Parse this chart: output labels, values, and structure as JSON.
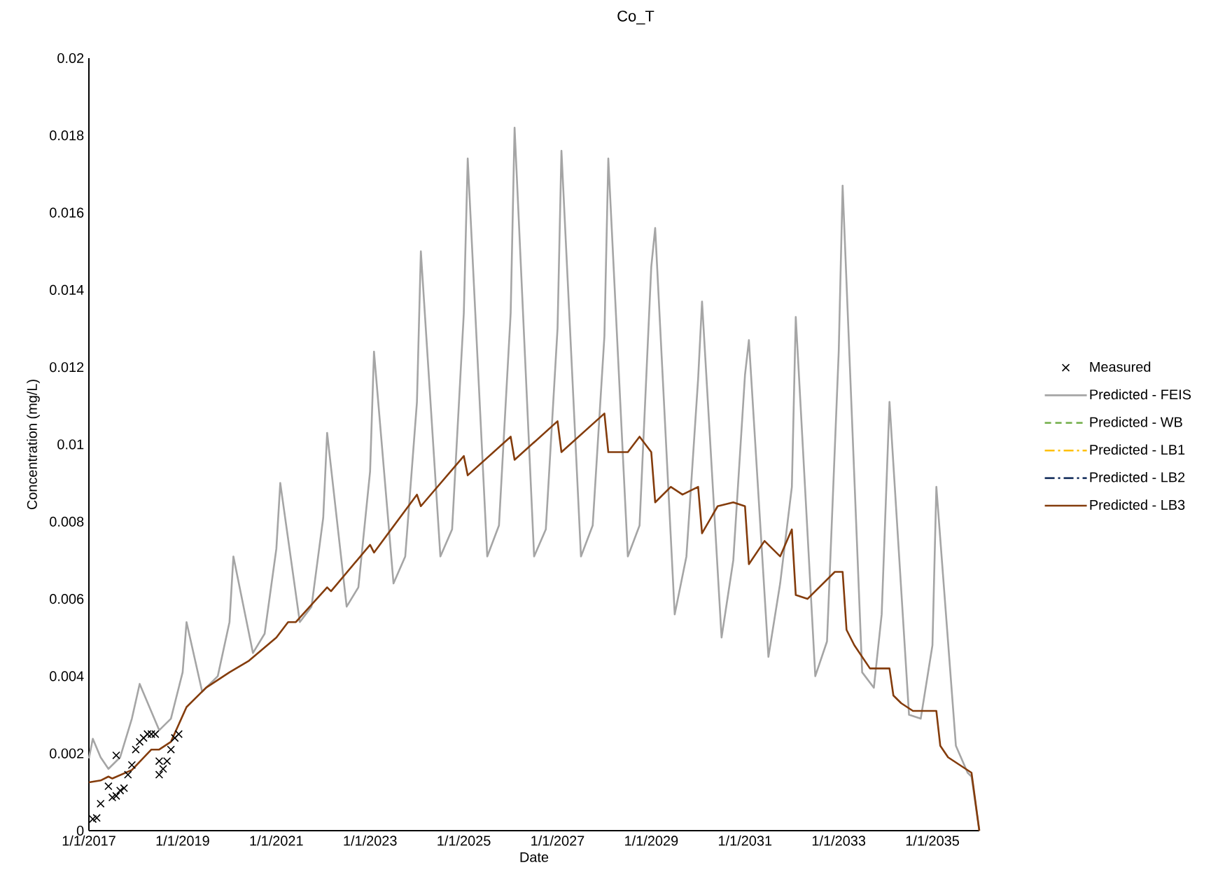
{
  "chart_data": {
    "type": "line",
    "title": "Co_T",
    "xlabel": "Date",
    "ylabel": "Concentration (mg/L)",
    "xlim": [
      "2017-01-01",
      "2036-01-01"
    ],
    "xticks": [
      {
        "value": "2017-01-01",
        "label": "1/1/2017"
      },
      {
        "value": "2019-01-01",
        "label": "1/1/2019"
      },
      {
        "value": "2021-01-01",
        "label": "1/1/2021"
      },
      {
        "value": "2023-01-01",
        "label": "1/1/2023"
      },
      {
        "value": "2025-01-01",
        "label": "1/1/2025"
      },
      {
        "value": "2027-01-01",
        "label": "1/1/2027"
      },
      {
        "value": "2029-01-01",
        "label": "1/1/2029"
      },
      {
        "value": "2031-01-01",
        "label": "1/1/2031"
      },
      {
        "value": "2033-01-01",
        "label": "1/1/2033"
      },
      {
        "value": "2035-01-01",
        "label": "1/1/2035"
      }
    ],
    "ylim": [
      0,
      0.02
    ],
    "yticks": [
      0,
      0.002,
      0.004,
      0.006,
      0.008,
      0.01,
      0.012,
      0.014,
      0.016,
      0.018,
      0.02
    ],
    "legend": "right",
    "series": [
      {
        "name": "Measured",
        "type": "scatter",
        "marker": "cross",
        "color": "#000000",
        "x": [
          "2017-02",
          "2017-03",
          "2017-04",
          "2017-06",
          "2017-07",
          "2017-08",
          "2017-08",
          "2017-09",
          "2017-10",
          "2017-11",
          "2017-12",
          "2018-01",
          "2018-02",
          "2018-03",
          "2018-04",
          "2018-05",
          "2018-06",
          "2018-07",
          "2018-07",
          "2018-08",
          "2018-09",
          "2018-10",
          "2018-11",
          "2018-12"
        ],
        "values": [
          0.0003,
          0.00033,
          0.0007,
          0.00115,
          0.00086,
          0.0009,
          0.00195,
          0.00104,
          0.0011,
          0.00145,
          0.0017,
          0.0021,
          0.0023,
          0.0024,
          0.0025,
          0.0025,
          0.0025,
          0.0018,
          0.00145,
          0.0016,
          0.0018,
          0.0021,
          0.0024,
          0.0025
        ]
      },
      {
        "name": "Predicted - FEIS",
        "marker": "none",
        "line_style": "solid",
        "color": "#a5a5a5",
        "x": [
          "2017-01",
          "2017-02",
          "2017-04",
          "2017-06",
          "2017-09",
          "2017-12",
          "2018-02",
          "2018-07",
          "2018-10",
          "2019-01",
          "2019-02",
          "2019-06",
          "2019-10",
          "2020-01",
          "2020-02",
          "2020-07",
          "2020-10",
          "2021-01",
          "2021-02",
          "2021-07",
          "2021-10",
          "2022-01",
          "2022-02",
          "2022-07",
          "2022-10",
          "2023-01",
          "2023-02",
          "2023-07",
          "2023-10",
          "2024-01",
          "2024-02",
          "2024-07",
          "2024-10",
          "2025-01",
          "2025-02",
          "2025-07",
          "2025-10",
          "2026-01",
          "2026-02",
          "2026-07",
          "2026-10",
          "2027-01",
          "2027-02",
          "2027-07",
          "2027-10",
          "2028-01",
          "2028-02",
          "2028-07",
          "2028-10",
          "2029-01",
          "2029-02",
          "2029-07",
          "2029-10",
          "2030-01",
          "2030-02",
          "2030-07",
          "2030-10",
          "2031-01",
          "2031-02",
          "2031-07",
          "2031-10",
          "2032-01",
          "2032-02",
          "2032-07",
          "2032-10",
          "2033-01",
          "2033-02",
          "2033-07",
          "2033-10",
          "2033-12",
          "2034-02",
          "2034-07",
          "2034-10",
          "2035-01",
          "2035-02",
          "2035-07",
          "2035-10",
          "2035-11",
          "2036-01"
        ],
        "values": [
          0.00187,
          0.00238,
          0.0019,
          0.0016,
          0.0019,
          0.0029,
          0.0038,
          0.0026,
          0.0029,
          0.0041,
          0.0054,
          0.0036,
          0.004,
          0.0054,
          0.0071,
          0.0046,
          0.0051,
          0.0073,
          0.009,
          0.0054,
          0.0058,
          0.0081,
          0.0103,
          0.0058,
          0.0063,
          0.0093,
          0.0124,
          0.0064,
          0.0071,
          0.0111,
          0.015,
          0.0071,
          0.0078,
          0.0134,
          0.0174,
          0.0071,
          0.0079,
          0.0134,
          0.0182,
          0.0071,
          0.0078,
          0.013,
          0.0176,
          0.0071,
          0.0079,
          0.0128,
          0.0174,
          0.0071,
          0.0079,
          0.0146,
          0.0156,
          0.0056,
          0.0071,
          0.0117,
          0.0137,
          0.005,
          0.007,
          0.0118,
          0.0127,
          0.0045,
          0.0064,
          0.0089,
          0.0133,
          0.004,
          0.0049,
          0.0124,
          0.0167,
          0.0041,
          0.0037,
          0.0056,
          0.0111,
          0.003,
          0.0029,
          0.0048,
          0.0089,
          0.0022,
          0.0015,
          0.0014,
          0
        ]
      },
      {
        "name": "Predicted - WB",
        "marker": "none",
        "line_style": "dashed",
        "color": "#70ad47"
      },
      {
        "name": "Predicted - LB1",
        "marker": "none",
        "line_style": "dashdot",
        "color": "#ffc000"
      },
      {
        "name": "Predicted - LB2",
        "marker": "none",
        "line_style": "dashdot",
        "color": "#1f3864"
      },
      {
        "name": "Predicted - LB3",
        "marker": "none",
        "line_style": "solid",
        "color": "#843c0c",
        "x": [
          "2017-01",
          "2017-04",
          "2017-06",
          "2017-07",
          "2017-12",
          "2018-05",
          "2018-07",
          "2018-10",
          "2019-02",
          "2019-07",
          "2020-01",
          "2020-06",
          "2021-01",
          "2021-04",
          "2021-06",
          "2022-02",
          "2022-03",
          "2023-01",
          "2023-02",
          "2024-01",
          "2024-02",
          "2025-01",
          "2025-02",
          "2026-01",
          "2026-02",
          "2027-01",
          "2027-02",
          "2028-01",
          "2028-02",
          "2028-07",
          "2028-10",
          "2029-01",
          "2029-02",
          "2029-06",
          "2029-09",
          "2030-01",
          "2030-02",
          "2030-06",
          "2030-10",
          "2031-01",
          "2031-02",
          "2031-06",
          "2031-10",
          "2032-01",
          "2032-02",
          "2032-05",
          "2032-12",
          "2033-02",
          "2033-03",
          "2033-05",
          "2033-09",
          "2034-01",
          "2034-02",
          "2034-03",
          "2034-05",
          "2034-08",
          "2035-01",
          "2035-02",
          "2035-03",
          "2035-05",
          "2035-08",
          "2035-11",
          "2036-01"
        ],
        "values": [
          0.00125,
          0.0013,
          0.0014,
          0.00135,
          0.00157,
          0.0021,
          0.0021,
          0.0023,
          0.0032,
          0.0037,
          0.0041,
          0.0044,
          0.005,
          0.0054,
          0.0054,
          0.0063,
          0.0062,
          0.0074,
          0.0072,
          0.0087,
          0.0084,
          0.0097,
          0.0092,
          0.0102,
          0.0096,
          0.0106,
          0.0098,
          0.0108,
          0.0098,
          0.0098,
          0.0102,
          0.0098,
          0.0085,
          0.0089,
          0.0087,
          0.0089,
          0.0077,
          0.0084,
          0.0085,
          0.0084,
          0.0069,
          0.0075,
          0.0071,
          0.0078,
          0.0061,
          0.006,
          0.0067,
          0.0067,
          0.0052,
          0.0048,
          0.0042,
          0.0042,
          0.0042,
          0.0035,
          0.0033,
          0.0031,
          0.0031,
          0.0031,
          0.0022,
          0.0019,
          0.0017,
          0.0015,
          0
        ]
      }
    ]
  }
}
